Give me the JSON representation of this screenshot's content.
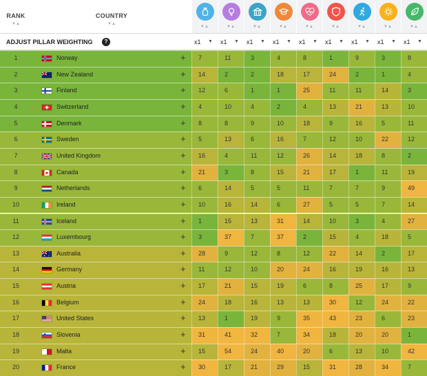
{
  "header": {
    "rank_label": "RANK",
    "country_label": "COUNTRY",
    "pillars": [
      {
        "icon": "money-bag-icon",
        "color": "#4fb3e8"
      },
      {
        "icon": "lightbulb-icon",
        "color": "#b57de0"
      },
      {
        "icon": "government-building-icon",
        "color": "#3aa6c7"
      },
      {
        "icon": "graduation-cap-icon",
        "color": "#f0883a"
      },
      {
        "icon": "heart-pulse-icon",
        "color": "#f06a8a"
      },
      {
        "icon": "shield-icon",
        "color": "#f0554a"
      },
      {
        "icon": "running-person-icon",
        "color": "#2fa9e0"
      },
      {
        "icon": "sun-icon",
        "color": "#f7b21c"
      },
      {
        "icon": "leaf-icon",
        "color": "#45b86a"
      }
    ]
  },
  "adjust": {
    "label": "ADJUST PILLAR WEIGHTING",
    "help_symbol": "?",
    "weights": [
      "x1",
      "x1",
      "x1",
      "x1",
      "x1",
      "x1",
      "x1",
      "x1",
      "x1"
    ]
  },
  "colors": {
    "top": "#7ab53b",
    "good": "#99b83a",
    "mid": "#b8b53a",
    "low": "#e2b23f",
    "bottom": "#f0b63f"
  },
  "rows": [
    {
      "rank": "1",
      "country": "Norway",
      "flag": "norway",
      "values": [
        "7",
        "11",
        "3",
        "4",
        "8",
        "1",
        "9",
        "3",
        "8"
      ]
    },
    {
      "rank": "2",
      "country": "New Zealand",
      "flag": "newzealand",
      "values": [
        "14",
        "2",
        "2",
        "18",
        "17",
        "24",
        "2",
        "1",
        "4"
      ]
    },
    {
      "rank": "3",
      "country": "Finland",
      "flag": "finland",
      "values": [
        "12",
        "6",
        "1",
        "1",
        "25",
        "11",
        "11",
        "14",
        "3"
      ]
    },
    {
      "rank": "4",
      "country": "Switzerland",
      "flag": "switzerland",
      "values": [
        "4",
        "10",
        "4",
        "2",
        "4",
        "13",
        "21",
        "13",
        "10"
      ]
    },
    {
      "rank": "5",
      "country": "Denmark",
      "flag": "denmark",
      "values": [
        "8",
        "8",
        "9",
        "10",
        "18",
        "9",
        "16",
        "5",
        "11"
      ]
    },
    {
      "rank": "6",
      "country": "Sweden",
      "flag": "sweden",
      "values": [
        "5",
        "13",
        "6",
        "16",
        "7",
        "12",
        "10",
        "22",
        "12"
      ]
    },
    {
      "rank": "7",
      "country": "United Kingdom",
      "flag": "uk",
      "values": [
        "16",
        "4",
        "11",
        "12",
        "26",
        "14",
        "18",
        "8",
        "2"
      ]
    },
    {
      "rank": "8",
      "country": "Canada",
      "flag": "canada",
      "values": [
        "21",
        "3",
        "8",
        "15",
        "21",
        "17",
        "1",
        "11",
        "19"
      ]
    },
    {
      "rank": "9",
      "country": "Netherlands",
      "flag": "netherlands",
      "values": [
        "6",
        "14",
        "5",
        "5",
        "11",
        "7",
        "7",
        "9",
        "49"
      ]
    },
    {
      "rank": "10",
      "country": "Ireland",
      "flag": "ireland",
      "values": [
        "10",
        "16",
        "14",
        "6",
        "27",
        "5",
        "5",
        "7",
        "14"
      ]
    },
    {
      "rank": "11",
      "country": "Iceland",
      "flag": "iceland",
      "values": [
        "1",
        "15",
        "13",
        "31",
        "14",
        "10",
        "3",
        "4",
        "27"
      ]
    },
    {
      "rank": "12",
      "country": "Luxembourg",
      "flag": "luxembourg",
      "values": [
        "3",
        "37",
        "7",
        "37",
        "2",
        "15",
        "4",
        "18",
        "5"
      ]
    },
    {
      "rank": "13",
      "country": "Australia",
      "flag": "australia",
      "values": [
        "28",
        "9",
        "12",
        "8",
        "12",
        "22",
        "14",
        "2",
        "17"
      ]
    },
    {
      "rank": "14",
      "country": "Germany",
      "flag": "germany",
      "values": [
        "11",
        "12",
        "10",
        "20",
        "24",
        "16",
        "19",
        "16",
        "13"
      ]
    },
    {
      "rank": "15",
      "country": "Austria",
      "flag": "austria",
      "values": [
        "17",
        "21",
        "15",
        "19",
        "6",
        "8",
        "25",
        "17",
        "9"
      ]
    },
    {
      "rank": "16",
      "country": "Belgium",
      "flag": "belgium",
      "values": [
        "24",
        "18",
        "16",
        "13",
        "13",
        "30",
        "12",
        "24",
        "22"
      ]
    },
    {
      "rank": "17",
      "country": "United States",
      "flag": "usa",
      "values": [
        "13",
        "1",
        "19",
        "9",
        "35",
        "43",
        "23",
        "6",
        "23"
      ]
    },
    {
      "rank": "18",
      "country": "Slovenia",
      "flag": "slovenia",
      "values": [
        "31",
        "41",
        "32",
        "7",
        "34",
        "18",
        "20",
        "20",
        "1"
      ]
    },
    {
      "rank": "19",
      "country": "Malta",
      "flag": "malta",
      "values": [
        "15",
        "54",
        "24",
        "40",
        "20",
        "6",
        "13",
        "10",
        "42"
      ]
    },
    {
      "rank": "20",
      "country": "France",
      "flag": "france",
      "values": [
        "30",
        "17",
        "21",
        "29",
        "15",
        "31",
        "28",
        "34",
        "7"
      ]
    }
  ]
}
